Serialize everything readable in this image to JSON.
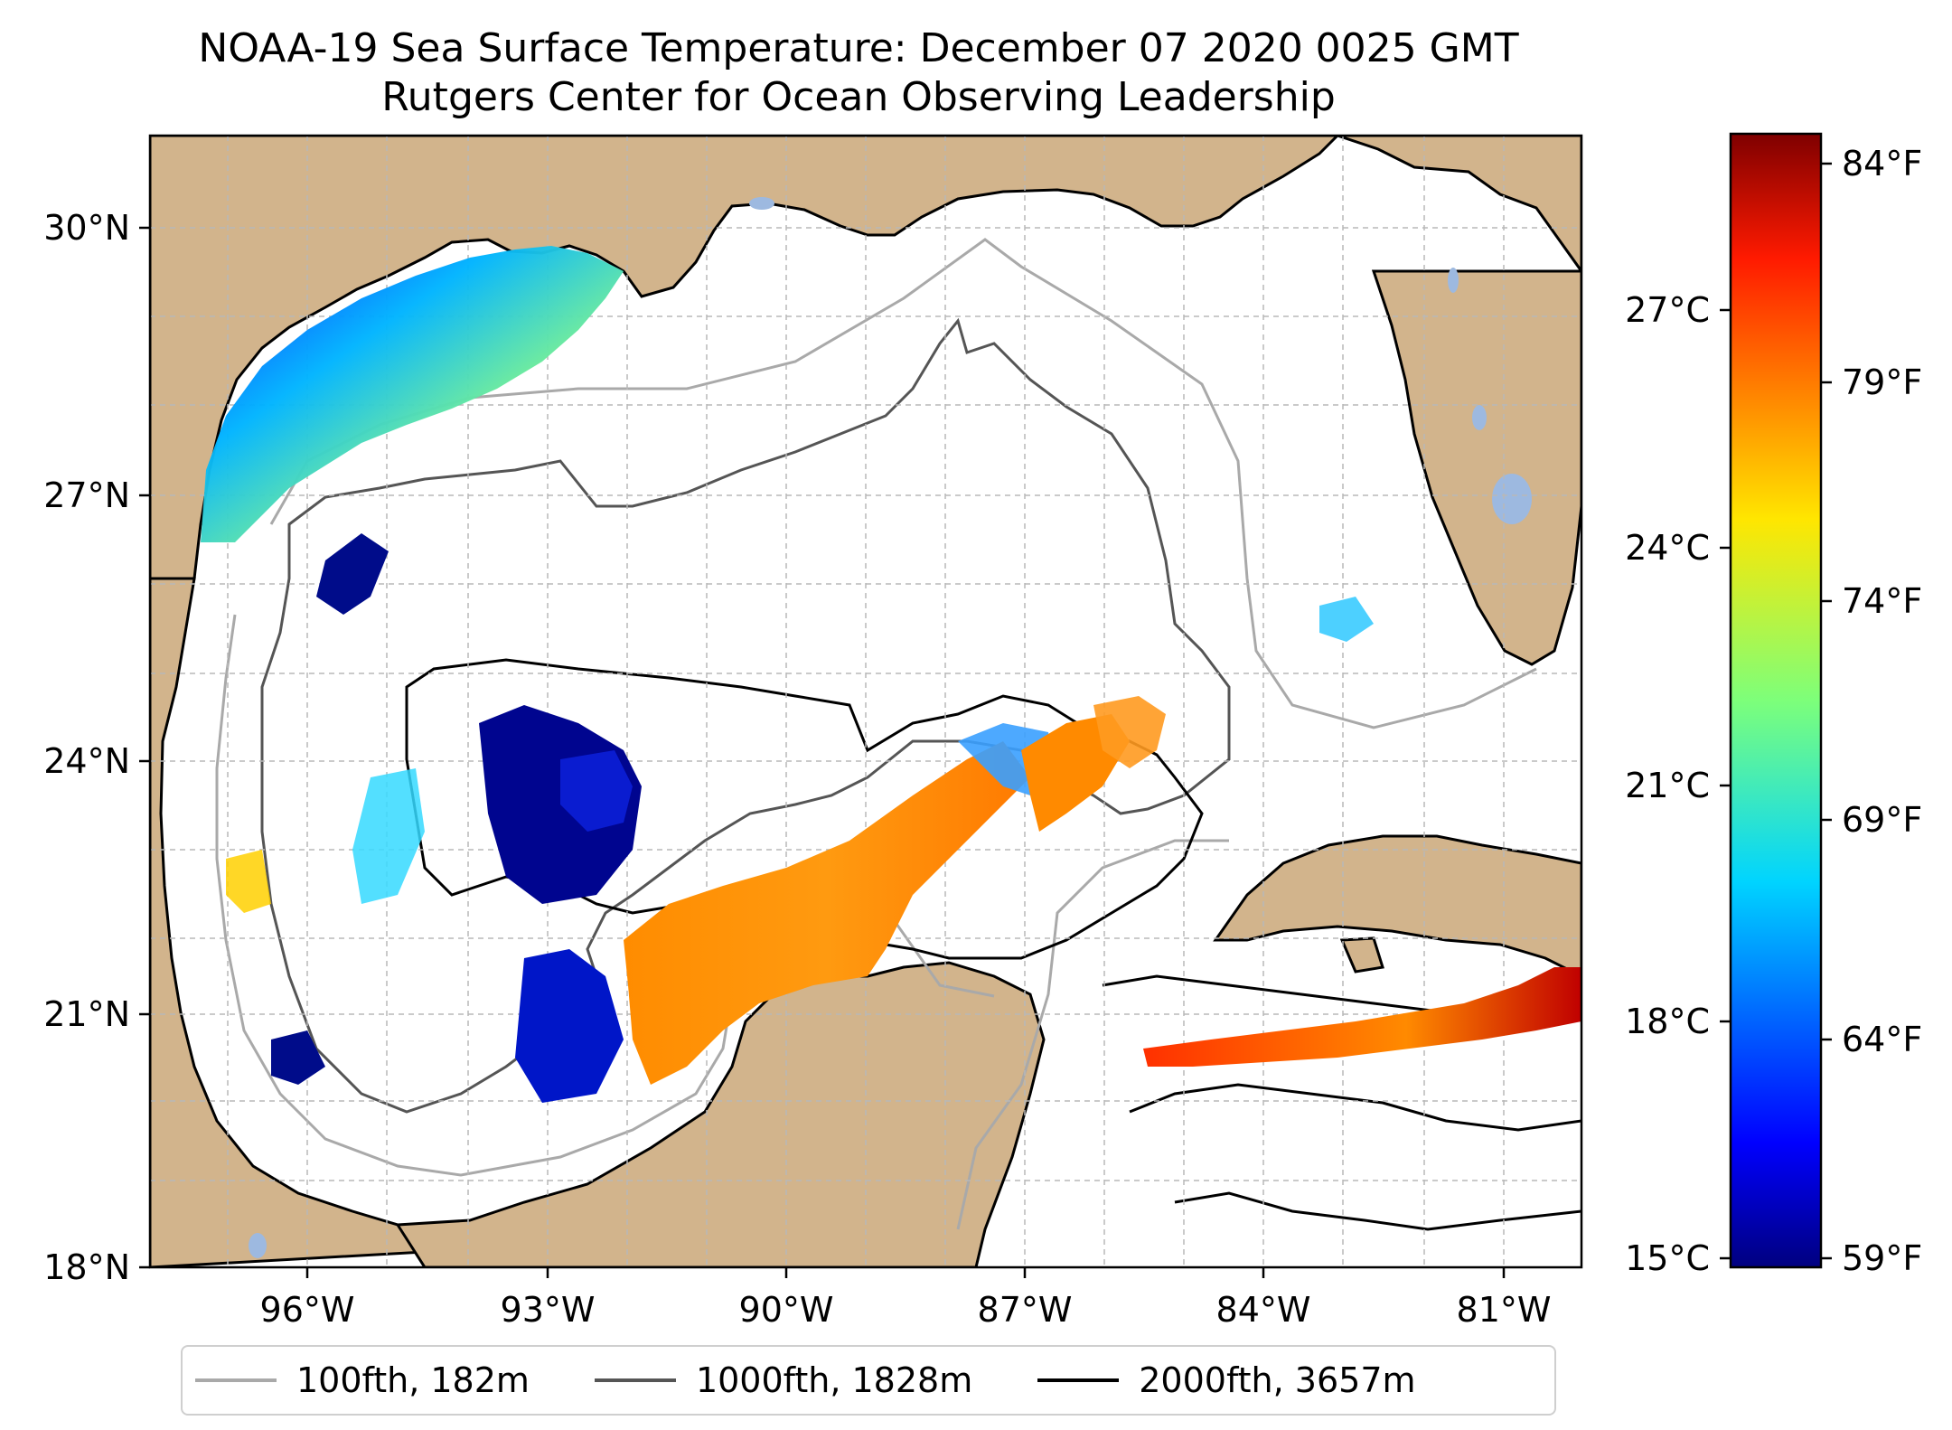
{
  "title": {
    "line1": "NOAA-19 Sea Surface Temperature: December 07 2020 0025 GMT",
    "line2": "Rutgers Center for Ocean Observing Leadership"
  },
  "map": {
    "lat_ticks": [
      "30°N",
      "27°N",
      "24°N",
      "21°N",
      "18°N"
    ],
    "lon_ticks": [
      "96°W",
      "93°W",
      "90°W",
      "87°W",
      "84°W",
      "81°W"
    ],
    "colors": {
      "land": "#d2b48c",
      "water": "#ffffff",
      "lakes": "#9db9e0",
      "grid": "#bbbbbb"
    }
  },
  "colorbar": {
    "celsius_labels": [
      "27°C",
      "24°C",
      "21°C",
      "18°C",
      "15°C"
    ],
    "fahrenheit_labels": [
      "84°F",
      "79°F",
      "74°F",
      "69°F",
      "64°F",
      "59°F"
    ]
  },
  "legend": {
    "items": [
      {
        "label": "100fth, 182m",
        "color": "#a9a9a9"
      },
      {
        "label": "1000fth, 1828m",
        "color": "#555555"
      },
      {
        "label": "2000fth, 3657m",
        "color": "#000000"
      }
    ]
  }
}
